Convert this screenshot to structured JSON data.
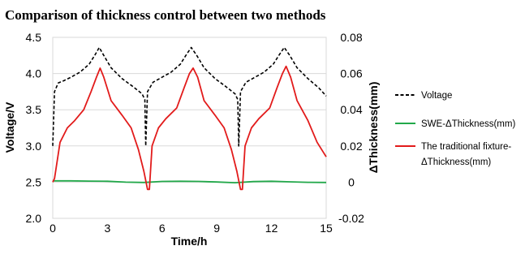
{
  "chart_data": {
    "type": "line",
    "title": "Comparison of thickness control between two methods",
    "xlabel": "Time/h",
    "ylabel_left": "Voltage/V",
    "ylabel_right": "ΔThickness(mm)",
    "xlim": [
      0,
      15
    ],
    "ylim_left": [
      2.0,
      4.5
    ],
    "ylim_right": [
      -0.02,
      0.08
    ],
    "x_ticks": [
      "0",
      "3",
      "6",
      "9",
      "12",
      "15"
    ],
    "y_left_ticks": [
      "2.0",
      "2.5",
      "3.0",
      "3.5",
      "4.0",
      "4.5"
    ],
    "y_right_ticks": [
      "-0.02",
      "0",
      "0.02",
      "0.04",
      "0.06",
      "0.08"
    ],
    "grid": "horizontal",
    "legend_position": "right",
    "series": [
      {
        "name": "Voltage",
        "axis": "left",
        "color": "#000000",
        "style": "dashed",
        "x": [
          0,
          0.1,
          0.3,
          0.6,
          1.0,
          1.5,
          2.0,
          2.3,
          2.55,
          2.8,
          3.2,
          3.8,
          4.4,
          4.9,
          5.05,
          5.1,
          5.2,
          5.5,
          6.0,
          6.5,
          7.0,
          7.3,
          7.6,
          7.9,
          8.3,
          8.9,
          9.5,
          10.0,
          10.15,
          10.2,
          10.3,
          10.6,
          11.1,
          11.6,
          12.1,
          12.4,
          12.7,
          13.0,
          13.4,
          14.0,
          14.6,
          15.0
        ],
        "y": [
          3.0,
          3.75,
          3.87,
          3.9,
          3.95,
          4.02,
          4.13,
          4.25,
          4.36,
          4.25,
          4.08,
          3.93,
          3.82,
          3.72,
          3.64,
          3.0,
          3.75,
          3.88,
          3.95,
          4.02,
          4.13,
          4.25,
          4.36,
          4.25,
          4.08,
          3.93,
          3.82,
          3.72,
          3.64,
          3.0,
          3.75,
          3.88,
          3.95,
          4.02,
          4.13,
          4.25,
          4.36,
          4.25,
          4.08,
          3.93,
          3.8,
          3.69
        ]
      },
      {
        "name": "SWE-ΔThickness(mm)",
        "axis": "right",
        "color": "#22a84a",
        "style": "solid",
        "x": [
          0,
          1,
          2,
          3,
          4,
          5,
          6,
          7,
          8,
          9,
          10,
          11,
          12,
          13,
          14,
          15
        ],
        "y": [
          0.0007,
          0.0007,
          0.0006,
          0.0005,
          0.0,
          -0.0002,
          0.0004,
          0.0005,
          0.0004,
          0.0001,
          -0.0003,
          0.0003,
          0.0005,
          0.0002,
          -0.0001,
          -0.0002
        ]
      },
      {
        "name": "The traditional fixture-ΔThickness(mm)",
        "axis": "right",
        "color": "#e21b1b",
        "style": "solid",
        "x": [
          0,
          0.1,
          0.4,
          0.8,
          1.2,
          1.7,
          2.1,
          2.4,
          2.6,
          2.8,
          3.2,
          3.8,
          4.3,
          4.7,
          5.0,
          5.2,
          5.3,
          5.45,
          5.8,
          6.2,
          6.8,
          7.2,
          7.5,
          7.7,
          7.95,
          8.3,
          8.9,
          9.4,
          9.8,
          10.1,
          10.3,
          10.4,
          10.55,
          10.9,
          11.3,
          11.9,
          12.3,
          12.6,
          12.8,
          13.05,
          13.4,
          14.0,
          14.5,
          15.0
        ],
        "y": [
          0.0,
          0.002,
          0.022,
          0.03,
          0.034,
          0.04,
          0.05,
          0.058,
          0.063,
          0.058,
          0.045,
          0.037,
          0.03,
          0.018,
          0.006,
          -0.004,
          -0.004,
          0.02,
          0.03,
          0.035,
          0.041,
          0.052,
          0.06,
          0.063,
          0.058,
          0.045,
          0.037,
          0.03,
          0.018,
          0.006,
          -0.004,
          -0.004,
          0.02,
          0.03,
          0.035,
          0.041,
          0.052,
          0.06,
          0.064,
          0.058,
          0.045,
          0.034,
          0.022,
          0.014
        ]
      }
    ]
  }
}
